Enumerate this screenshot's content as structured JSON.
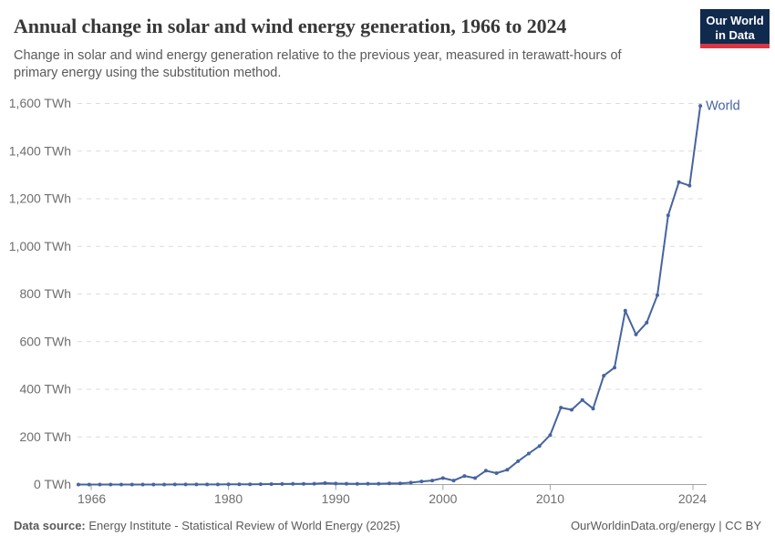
{
  "header": {
    "logo": {
      "line1": "Our World",
      "line2": "in Data"
    }
  },
  "footer": {
    "source_label": "Data source:",
    "source_text": "Energy Institute - Statistical Review of World Energy (2025)",
    "right_text": "OurWorldinData.org/energy | CC BY"
  },
  "colors": {
    "line": "#4664a0",
    "series_label": "#4664a0",
    "grid": "#dcdcdc",
    "axis": "#a3a3a3",
    "axis_text": "#6e6e6e",
    "title_text": "#383838",
    "subtitle_text": "#5a5a5a",
    "footer_text": "#5a5a5a",
    "logo_bg": "#102a4e",
    "logo_red": "#d93644",
    "background": "#ffffff"
  },
  "chart_data": {
    "type": "line",
    "title": "Annual change in solar and wind energy generation, 1966 to 2024",
    "subtitle": "Change in solar and wind energy generation relative to the previous year, measured in terawatt-hours of primary energy using the substitution method.",
    "xlabel": "",
    "ylabel": "",
    "unit": "TWh",
    "grid": true,
    "legend_position": "end-of-line",
    "xlim": [
      1966,
      2024
    ],
    "ylim": [
      0,
      1600
    ],
    "x_years": {
      "start": 1966,
      "end": 2024,
      "step": 1
    },
    "series": [
      {
        "name": "World",
        "values": [
          0,
          0,
          0,
          0,
          0,
          0.1,
          0.1,
          0.1,
          0.1,
          0.2,
          0.2,
          0.3,
          0.3,
          0.4,
          0.6,
          0.8,
          1.2,
          1.6,
          2.0,
          2.3,
          2.5,
          2.8,
          3.5,
          6,
          4.2,
          3.6,
          3.2,
          3.4,
          3.6,
          4.5,
          4.6,
          8,
          13,
          17,
          27,
          17,
          36,
          27,
          58,
          48,
          62,
          98,
          130,
          162,
          208,
          323,
          314,
          355,
          319,
          457,
          491,
          730,
          630,
          680,
          795,
          1130,
          1270,
          1255,
          1590
        ]
      }
    ],
    "y_ticks": [
      {
        "value": 0,
        "label": "0 TWh"
      },
      {
        "value": 200,
        "label": "200 TWh"
      },
      {
        "value": 400,
        "label": "400 TWh"
      },
      {
        "value": 600,
        "label": "600 TWh"
      },
      {
        "value": 800,
        "label": "800 TWh"
      },
      {
        "value": 1000,
        "label": "1,000 TWh"
      },
      {
        "value": 1200,
        "label": "1,200 TWh"
      },
      {
        "value": 1400,
        "label": "1,400 TWh"
      },
      {
        "value": 1600,
        "label": "1,600 TWh"
      }
    ],
    "x_ticks": [
      {
        "value": 1966,
        "label": "1966"
      },
      {
        "value": 1980,
        "label": "1980"
      },
      {
        "value": 1990,
        "label": "1990"
      },
      {
        "value": 2000,
        "label": "2000"
      },
      {
        "value": 2010,
        "label": "2010"
      },
      {
        "value": 2024,
        "label": "2024"
      }
    ]
  }
}
